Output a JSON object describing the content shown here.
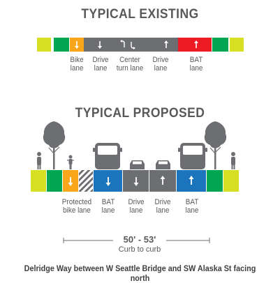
{
  "existing": {
    "title": "TYPICAL EXISTING",
    "labels": {
      "bike": [
        "Bike",
        "lane"
      ],
      "drive1": [
        "Drive",
        "lane"
      ],
      "center": [
        "Center",
        "turn lane"
      ],
      "drive2": [
        "Drive",
        "lane"
      ],
      "bat": [
        "BAT",
        "lane"
      ]
    }
  },
  "proposed": {
    "title": "TYPICAL PROPOSED",
    "labels": {
      "protected": [
        "Protected",
        "bike lane"
      ],
      "bat1": [
        "BAT",
        "lane"
      ],
      "drive1": [
        "Drive",
        "lane"
      ],
      "drive2": [
        "Drive",
        "lane"
      ],
      "bat2": [
        "BAT",
        "lane"
      ]
    }
  },
  "dimension": {
    "width": "50' - 53'",
    "label": "Curb to curb"
  },
  "caption": "Delridge Way between W Seattle Bridge and SW Alaska St facing north",
  "colors": {
    "sidewalk": "#d7df23",
    "buffer": "#00a651",
    "bike": "#faa61a",
    "drive": "#6d6e71",
    "bat": "#ed1c24",
    "bat_proposed": "#1c75bc",
    "text": "#58595b",
    "silhouette": "#6d6e71"
  }
}
